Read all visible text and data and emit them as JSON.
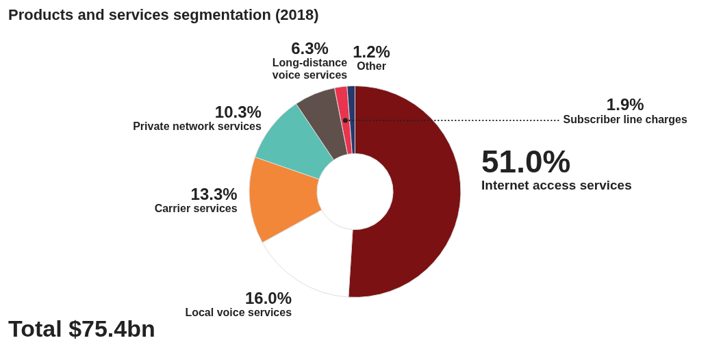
{
  "chart_data": {
    "type": "donut",
    "title": "Products and services segmentation (2018)",
    "categories": [
      "Internet access services",
      "Local voice services",
      "Carrier services",
      "Private network services",
      "Long-distance voice services",
      "Subscriber line charges",
      "Other"
    ],
    "values": [
      51.0,
      16.0,
      13.3,
      10.3,
      6.3,
      1.9,
      1.2
    ],
    "colors": [
      "#7b1113",
      "#ffffff",
      "#f2873a",
      "#5bbfb3",
      "#5f504c",
      "#e8344e",
      "#27386b"
    ],
    "value_labels": [
      "51.0%",
      "16.0%",
      "13.3%",
      "10.3%",
      "6.3%",
      "1.9%",
      "1.2%"
    ],
    "legend": false,
    "annotations": [
      "Total $75.4bn"
    ]
  }
}
